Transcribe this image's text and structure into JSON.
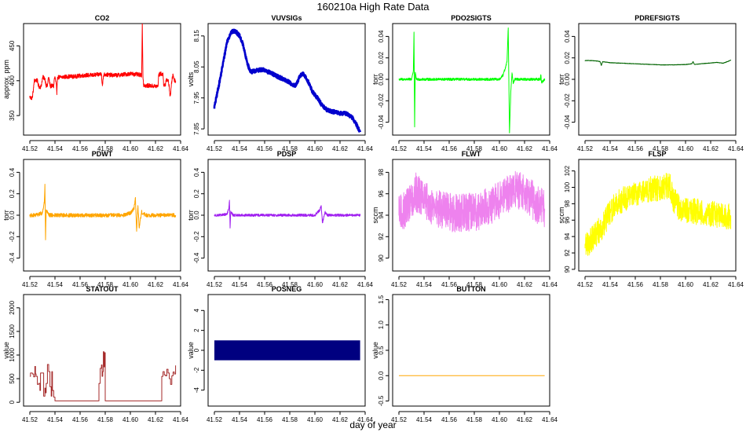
{
  "figure": {
    "title": "160210a   High Rate Data",
    "xlabel": "day of year"
  },
  "chart_data": [
    {
      "name": "co2",
      "type": "line",
      "title": "CO2",
      "ylabel": "approx. ppm",
      "color": "#ff0000",
      "xlim": [
        41.515,
        41.64
      ],
      "ylim": [
        322,
        482
      ],
      "xticks": [
        "41.52",
        "41.54",
        "41.56",
        "41.58",
        "41.60",
        "41.62",
        "41.64"
      ],
      "yticks": [
        "350",
        "400",
        "450"
      ],
      "noise": 3,
      "x": [
        41.52,
        41.521,
        41.522,
        41.523,
        41.5235,
        41.525,
        41.526,
        41.527,
        41.528,
        41.529,
        41.53,
        41.5305,
        41.532,
        41.533,
        41.534,
        41.5345,
        41.535,
        41.536,
        41.5365,
        41.538,
        41.539,
        41.5395,
        41.54,
        41.541,
        41.5415,
        41.542,
        41.545,
        41.55,
        41.555,
        41.56,
        41.565,
        41.57,
        41.575,
        41.577,
        41.5775,
        41.578,
        41.5785,
        41.579,
        41.585,
        41.59,
        41.595,
        41.6,
        41.605,
        41.609,
        41.6095,
        41.61,
        41.6105,
        41.611,
        41.6115,
        41.615,
        41.62,
        41.622,
        41.6225,
        41.624,
        41.626,
        41.6265,
        41.628,
        41.6285,
        41.63,
        41.631,
        41.6315,
        41.632,
        41.633,
        41.634,
        41.635,
        41.636
      ],
      "y": [
        377,
        375,
        376,
        390,
        400,
        401,
        400,
        392,
        391,
        392,
        403,
        405,
        403,
        393,
        392,
        402,
        404,
        395,
        392,
        393,
        392,
        403,
        405,
        396,
        380,
        405,
        405,
        406,
        406,
        407,
        408,
        408,
        409,
        410,
        396,
        395,
        406,
        409,
        408,
        408,
        409,
        410,
        409,
        408,
        485,
        408,
        394,
        394,
        393,
        393,
        392,
        392,
        408,
        410,
        409,
        395,
        393,
        402,
        401,
        390,
        380,
        380,
        400,
        409,
        401,
        400
      ]
    },
    {
      "name": "vuvsigs",
      "type": "line",
      "title": "VUVSIGs",
      "ylabel": "volts",
      "color": "#0000cd",
      "xlim": [
        41.515,
        41.64
      ],
      "ylim": [
        7.83,
        8.19
      ],
      "xticks": [
        "41.52",
        "41.54",
        "41.56",
        "41.58",
        "41.60",
        "41.62",
        "41.64"
      ],
      "yticks": [
        "7.85",
        "7.95",
        "8.05",
        "8.15"
      ],
      "noise": 0.006,
      "x": [
        41.52,
        41.525,
        41.53,
        41.533,
        41.535,
        41.537,
        41.54,
        41.543,
        41.545,
        41.548,
        41.55,
        41.555,
        41.56,
        41.565,
        41.57,
        41.575,
        41.58,
        41.583,
        41.585,
        41.588,
        41.59,
        41.592,
        41.595,
        41.598,
        41.6,
        41.603,
        41.605,
        41.61,
        41.615,
        41.62,
        41.625,
        41.63,
        41.633,
        41.636
      ],
      "y": [
        7.92,
        8.02,
        8.13,
        8.16,
        8.165,
        8.165,
        8.15,
        8.12,
        8.08,
        8.04,
        8.035,
        8.04,
        8.04,
        8.03,
        8.02,
        8.01,
        8.0,
        7.99,
        7.99,
        8.02,
        8.03,
        8.02,
        8.0,
        7.97,
        7.96,
        7.945,
        7.93,
        7.91,
        7.905,
        7.9,
        7.9,
        7.885,
        7.865,
        7.84
      ]
    },
    {
      "name": "pdo2sigts",
      "type": "line",
      "title": "PDO2SIGTS",
      "ylabel": "torr",
      "color": "#00ff00",
      "xlim": [
        41.515,
        41.64
      ],
      "ylim": [
        -0.052,
        0.052
      ],
      "xticks": [
        "41.52",
        "41.54",
        "41.56",
        "41.58",
        "41.60",
        "41.62",
        "41.64"
      ],
      "yticks": [
        "-0.04",
        "-0.02",
        "0.00",
        "0.02",
        "0.04"
      ],
      "noise": 0.0012,
      "x": [
        41.52,
        41.525,
        41.53,
        41.5315,
        41.532,
        41.5325,
        41.533,
        41.534,
        41.54,
        41.56,
        41.58,
        41.6,
        41.603,
        41.605,
        41.606,
        41.607,
        41.608,
        41.609,
        41.61,
        41.611,
        41.612,
        41.62,
        41.6325,
        41.633,
        41.6335,
        41.636
      ],
      "y": [
        0.0,
        0.0,
        0.0,
        0.008,
        0.044,
        -0.044,
        0.006,
        0.0,
        0.0,
        0.0,
        0.0,
        0.0,
        0.004,
        0.012,
        0.016,
        0.048,
        -0.05,
        -0.013,
        0.006,
        -0.003,
        0.0,
        0.0,
        0.0,
        0.004,
        -0.003,
        0.0
      ]
    },
    {
      "name": "pdrefsigts",
      "type": "line",
      "title": "PDREFSIGTS",
      "ylabel": "torr",
      "color": "#006400",
      "xlim": [
        41.515,
        41.64
      ],
      "ylim": [
        -0.052,
        0.052
      ],
      "xticks": [
        "41.52",
        "41.54",
        "41.56",
        "41.58",
        "41.60",
        "41.62",
        "41.64"
      ],
      "yticks": [
        "-0.04",
        "-0.02",
        "0.00",
        "0.02",
        "0.04"
      ],
      "noise": 0.0002,
      "x": [
        41.52,
        41.525,
        41.53,
        41.532,
        41.533,
        41.534,
        41.54,
        41.55,
        41.56,
        41.57,
        41.58,
        41.59,
        41.6,
        41.605,
        41.606,
        41.607,
        41.61,
        41.615,
        41.62,
        41.625,
        41.63,
        41.636
      ],
      "y": [
        0.0175,
        0.0175,
        0.017,
        0.0165,
        0.013,
        0.0165,
        0.0155,
        0.015,
        0.0145,
        0.014,
        0.0135,
        0.0135,
        0.0138,
        0.0145,
        0.0165,
        0.014,
        0.0142,
        0.0148,
        0.0152,
        0.0158,
        0.015,
        0.0178
      ]
    },
    {
      "name": "pdwt",
      "type": "line",
      "title": "PDWT",
      "ylabel": "torr",
      "color": "#ffa500",
      "xlim": [
        41.515,
        41.64
      ],
      "ylim": [
        -0.52,
        0.52
      ],
      "xticks": [
        "41.52",
        "41.54",
        "41.56",
        "41.58",
        "41.60",
        "41.62",
        "41.64"
      ],
      "yticks": [
        "-0.4",
        "-0.2",
        "0.0",
        "0.2",
        "0.4"
      ],
      "noise": 0.018,
      "x": [
        41.52,
        41.525,
        41.53,
        41.5315,
        41.532,
        41.5325,
        41.533,
        41.535,
        41.54,
        41.56,
        41.58,
        41.595,
        41.6,
        41.603,
        41.604,
        41.605,
        41.606,
        41.607,
        41.609,
        41.612,
        41.62,
        41.636
      ],
      "y": [
        0.0,
        0.0,
        0.02,
        0.12,
        0.28,
        -0.23,
        0.05,
        0.0,
        0.0,
        0.0,
        0.0,
        0.0,
        0.02,
        0.07,
        0.16,
        -0.15,
        0.09,
        -0.11,
        0.03,
        0.0,
        0.0,
        0.0
      ]
    },
    {
      "name": "pdsp",
      "type": "line",
      "title": "PDSP",
      "ylabel": "torr",
      "color": "#a020f0",
      "xlim": [
        41.515,
        41.64
      ],
      "ylim": [
        -0.52,
        0.52
      ],
      "xticks": [
        "41.52",
        "41.54",
        "41.56",
        "41.58",
        "41.60",
        "41.62",
        "41.64"
      ],
      "yticks": [
        "-0.4",
        "-0.2",
        "0.0",
        "0.2",
        "0.4"
      ],
      "noise": 0.012,
      "x": [
        41.52,
        41.525,
        41.53,
        41.5315,
        41.532,
        41.5325,
        41.533,
        41.535,
        41.54,
        41.56,
        41.58,
        41.6,
        41.604,
        41.605,
        41.606,
        41.608,
        41.61,
        41.62,
        41.636
      ],
      "y": [
        0.0,
        0.0,
        0.01,
        0.06,
        0.14,
        -0.12,
        0.03,
        0.0,
        0.0,
        0.0,
        0.0,
        0.0,
        0.05,
        0.09,
        -0.07,
        0.03,
        0.0,
        0.0,
        0.0
      ]
    },
    {
      "name": "flwt",
      "type": "line",
      "title": "FLWT",
      "ylabel": "sccm",
      "color": "#ee82ee",
      "xlim": [
        41.515,
        41.64
      ],
      "ylim": [
        88.8,
        99.2
      ],
      "xticks": [
        "41.52",
        "41.54",
        "41.56",
        "41.58",
        "41.60",
        "41.62",
        "41.64"
      ],
      "yticks": [
        "90",
        "92",
        "94",
        "96",
        "98"
      ],
      "noise": 1.8,
      "x": [
        41.52,
        41.525,
        41.53,
        41.533,
        41.535,
        41.54,
        41.545,
        41.55,
        41.555,
        41.56,
        41.565,
        41.57,
        41.575,
        41.58,
        41.585,
        41.59,
        41.595,
        41.6,
        41.605,
        41.61,
        41.615,
        41.62,
        41.625,
        41.63,
        41.636
      ],
      "y": [
        94.0,
        94.5,
        95.5,
        96.2,
        96.0,
        95.4,
        95.0,
        94.7,
        94.4,
        94.3,
        94.2,
        94.2,
        94.3,
        94.3,
        94.5,
        94.8,
        95.1,
        95.4,
        95.9,
        96.3,
        96.3,
        96.0,
        95.6,
        95.0,
        94.6
      ]
    },
    {
      "name": "flsp",
      "type": "line",
      "title": "FLSP",
      "ylabel": "sccm",
      "color": "#ffff00",
      "xlim": [
        41.515,
        41.64
      ],
      "ylim": [
        89.8,
        103.4
      ],
      "xticks": [
        "41.52",
        "41.54",
        "41.56",
        "41.58",
        "41.60",
        "41.62",
        "41.64"
      ],
      "yticks": [
        "90",
        "92",
        "94",
        "96",
        "98",
        "100",
        "102"
      ],
      "noise": 1.6,
      "x": [
        41.52,
        41.525,
        41.53,
        41.535,
        41.54,
        41.545,
        41.55,
        41.555,
        41.56,
        41.565,
        41.57,
        41.575,
        41.58,
        41.585,
        41.588,
        41.59,
        41.595,
        41.6,
        41.61,
        41.62,
        41.63,
        41.636
      ],
      "y": [
        93.0,
        93.5,
        94.5,
        95.5,
        97.0,
        98.0,
        98.5,
        99.0,
        99.3,
        99.5,
        99.7,
        99.8,
        100.0,
        100.2,
        100.0,
        98.5,
        97.5,
        97.2,
        97.0,
        96.8,
        96.5,
        96.5
      ]
    },
    {
      "name": "statout",
      "type": "line",
      "title": "STATOUT",
      "ylabel": "value",
      "color": "#a52a2a",
      "step": true,
      "xlim": [
        41.515,
        41.64
      ],
      "ylim": [
        -80,
        2280
      ],
      "xticks": [
        "41.52",
        "41.54",
        "41.56",
        "41.58",
        "41.60",
        "41.62",
        "41.64"
      ],
      "yticks": [
        "0",
        "500",
        "1000",
        "1500",
        "2000"
      ],
      "noise": 0,
      "x": [
        41.52,
        41.5205,
        41.522,
        41.523,
        41.524,
        41.5245,
        41.525,
        41.526,
        41.527,
        41.528,
        41.5285,
        41.53,
        41.531,
        41.532,
        41.5325,
        41.533,
        41.534,
        41.535,
        41.536,
        41.537,
        41.5375,
        41.538,
        41.539,
        41.54,
        41.545,
        41.55,
        41.555,
        41.56,
        41.565,
        41.57,
        41.574,
        41.575,
        41.576,
        41.577,
        41.5775,
        41.578,
        41.5785,
        41.579,
        41.5795,
        41.58,
        41.585,
        41.59,
        41.595,
        41.6,
        41.605,
        41.61,
        41.615,
        41.62,
        41.6245,
        41.625,
        41.626,
        41.627,
        41.628,
        41.629,
        41.63,
        41.631,
        41.632,
        41.633,
        41.634,
        41.635,
        41.636
      ],
      "y": [
        550,
        620,
        600,
        540,
        760,
        600,
        550,
        380,
        400,
        250,
        620,
        620,
        130,
        300,
        200,
        400,
        800,
        650,
        330,
        130,
        650,
        250,
        110,
        30,
        30,
        30,
        30,
        30,
        30,
        30,
        30,
        400,
        720,
        790,
        550,
        650,
        1070,
        750,
        1050,
        30,
        30,
        30,
        30,
        30,
        30,
        30,
        30,
        30,
        30,
        550,
        650,
        580,
        560,
        700,
        620,
        500,
        380,
        560,
        640,
        600,
        780
      ]
    },
    {
      "name": "posneg",
      "type": "band",
      "title": "POSNEG",
      "ylabel": "value",
      "color": "#000080",
      "xlim": [
        41.515,
        41.64
      ],
      "ylim": [
        -5.6,
        5.6
      ],
      "xticks": [
        "41.52",
        "41.54",
        "41.56",
        "41.58",
        "41.60",
        "41.62",
        "41.64"
      ],
      "yticks": [
        "-4",
        "-2",
        "0",
        "2",
        "4"
      ],
      "x": [
        41.52,
        41.636
      ],
      "ymin": -1,
      "ymax": 1
    },
    {
      "name": "button",
      "type": "line",
      "title": "BUTTON",
      "ylabel": "value",
      "color": "#ffa500",
      "xlim": [
        41.515,
        41.64
      ],
      "ylim": [
        -0.6,
        1.6
      ],
      "xticks": [
        "41.52",
        "41.54",
        "41.56",
        "41.58",
        "41.60",
        "41.62",
        "41.64"
      ],
      "yticks": [
        "-0.5",
        "0.0",
        "0.5",
        "1.0",
        "1.5"
      ],
      "noise": 0,
      "x": [
        41.52,
        41.636
      ],
      "y": [
        0.0,
        0.0
      ]
    }
  ]
}
